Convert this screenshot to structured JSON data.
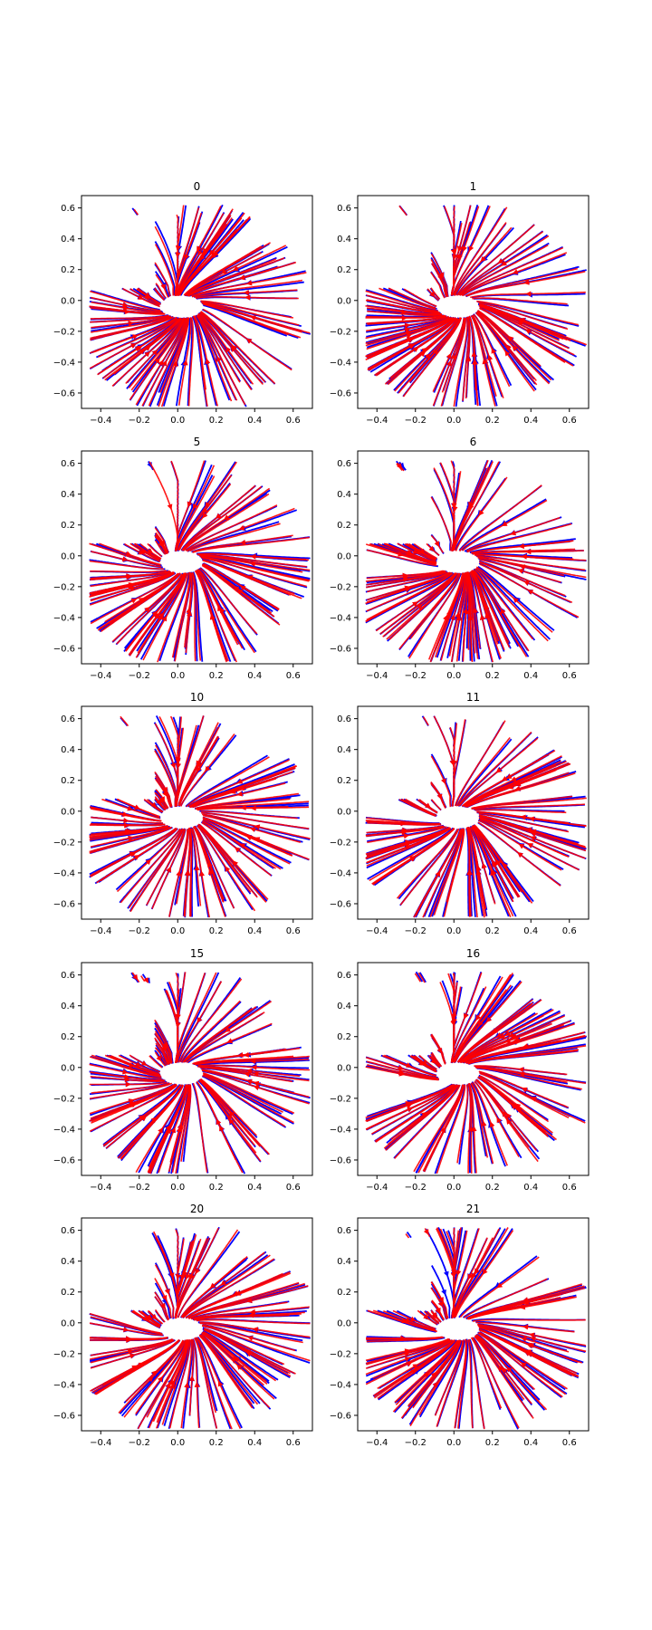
{
  "chart_data": [
    {
      "type": "streamplot",
      "title": "0",
      "xlim": [
        -0.5,
        0.7
      ],
      "ylim": [
        -0.7,
        0.68
      ],
      "xticks": [
        "-0.4",
        "-0.2",
        "0.0",
        "0.2",
        "0.4",
        "0.6"
      ],
      "yticks": [
        "0.6",
        "0.4",
        "0.2",
        "0.0",
        "-0.2",
        "-0.4",
        "-0.6"
      ],
      "series": [
        {
          "color": "#0000ff"
        },
        {
          "color": "#ff0000"
        }
      ],
      "grid": false
    },
    {
      "type": "streamplot",
      "title": "1",
      "xlim": [
        -0.5,
        0.7
      ],
      "ylim": [
        -0.7,
        0.68
      ],
      "xticks": [
        "-0.4",
        "-0.2",
        "0.0",
        "0.2",
        "0.4",
        "0.6"
      ],
      "yticks": [
        "0.6",
        "0.4",
        "0.2",
        "0.0",
        "-0.2",
        "-0.4",
        "-0.6"
      ],
      "series": [
        {
          "color": "#0000ff"
        },
        {
          "color": "#ff0000"
        }
      ],
      "grid": false
    },
    {
      "type": "streamplot",
      "title": "5",
      "xlim": [
        -0.5,
        0.7
      ],
      "ylim": [
        -0.7,
        0.68
      ],
      "xticks": [
        "-0.4",
        "-0.2",
        "0.0",
        "0.2",
        "0.4",
        "0.6"
      ],
      "yticks": [
        "0.6",
        "0.4",
        "0.2",
        "0.0",
        "-0.2",
        "-0.4",
        "-0.6"
      ],
      "series": [
        {
          "color": "#0000ff"
        },
        {
          "color": "#ff0000"
        }
      ],
      "grid": false
    },
    {
      "type": "streamplot",
      "title": "6",
      "xlim": [
        -0.5,
        0.7
      ],
      "ylim": [
        -0.7,
        0.68
      ],
      "xticks": [
        "-0.4",
        "-0.2",
        "0.0",
        "0.2",
        "0.4",
        "0.6"
      ],
      "yticks": [
        "0.6",
        "0.4",
        "0.2",
        "0.0",
        "-0.2",
        "-0.4",
        "-0.6"
      ],
      "series": [
        {
          "color": "#0000ff"
        },
        {
          "color": "#ff0000"
        }
      ],
      "grid": false
    },
    {
      "type": "streamplot",
      "title": "10",
      "xlim": [
        -0.5,
        0.7
      ],
      "ylim": [
        -0.7,
        0.68
      ],
      "xticks": [
        "-0.4",
        "-0.2",
        "0.0",
        "0.2",
        "0.4",
        "0.6"
      ],
      "yticks": [
        "0.6",
        "0.4",
        "0.2",
        "0.0",
        "-0.2",
        "-0.4",
        "-0.6"
      ],
      "series": [
        {
          "color": "#0000ff"
        },
        {
          "color": "#ff0000"
        }
      ],
      "grid": false
    },
    {
      "type": "streamplot",
      "title": "11",
      "xlim": [
        -0.5,
        0.7
      ],
      "ylim": [
        -0.7,
        0.68
      ],
      "xticks": [
        "-0.4",
        "-0.2",
        "0.0",
        "0.2",
        "0.4",
        "0.6"
      ],
      "yticks": [
        "0.6",
        "0.4",
        "0.2",
        "0.0",
        "-0.2",
        "-0.4",
        "-0.6"
      ],
      "series": [
        {
          "color": "#0000ff"
        },
        {
          "color": "#ff0000"
        }
      ],
      "grid": false
    },
    {
      "type": "streamplot",
      "title": "15",
      "xlim": [
        -0.5,
        0.7
      ],
      "ylim": [
        -0.7,
        0.68
      ],
      "xticks": [
        "-0.4",
        "-0.2",
        "0.0",
        "0.2",
        "0.4",
        "0.6"
      ],
      "yticks": [
        "0.6",
        "0.4",
        "0.2",
        "0.0",
        "-0.2",
        "-0.4",
        "-0.6"
      ],
      "series": [
        {
          "color": "#0000ff"
        },
        {
          "color": "#ff0000"
        }
      ],
      "grid": false
    },
    {
      "type": "streamplot",
      "title": "16",
      "xlim": [
        -0.5,
        0.7
      ],
      "ylim": [
        -0.7,
        0.68
      ],
      "xticks": [
        "-0.4",
        "-0.2",
        "0.0",
        "0.2",
        "0.4",
        "0.6"
      ],
      "yticks": [
        "0.6",
        "0.4",
        "0.2",
        "0.0",
        "-0.2",
        "-0.4",
        "-0.6"
      ],
      "series": [
        {
          "color": "#0000ff"
        },
        {
          "color": "#ff0000"
        }
      ],
      "grid": false
    },
    {
      "type": "streamplot",
      "title": "20",
      "xlim": [
        -0.5,
        0.7
      ],
      "ylim": [
        -0.7,
        0.68
      ],
      "xticks": [
        "-0.4",
        "-0.2",
        "0.0",
        "0.2",
        "0.4",
        "0.6"
      ],
      "yticks": [
        "0.6",
        "0.4",
        "0.2",
        "0.0",
        "-0.2",
        "-0.4",
        "-0.6"
      ],
      "series": [
        {
          "color": "#0000ff"
        },
        {
          "color": "#ff0000"
        }
      ],
      "grid": false
    },
    {
      "type": "streamplot",
      "title": "21",
      "xlim": [
        -0.5,
        0.7
      ],
      "ylim": [
        -0.7,
        0.68
      ],
      "xticks": [
        "-0.4",
        "-0.2",
        "0.0",
        "0.2",
        "0.4",
        "0.6"
      ],
      "yticks": [
        "0.6",
        "0.4",
        "0.2",
        "0.0",
        "-0.2",
        "-0.4",
        "-0.6"
      ],
      "series": [
        {
          "color": "#0000ff"
        },
        {
          "color": "#ff0000"
        }
      ],
      "grid": false
    }
  ]
}
